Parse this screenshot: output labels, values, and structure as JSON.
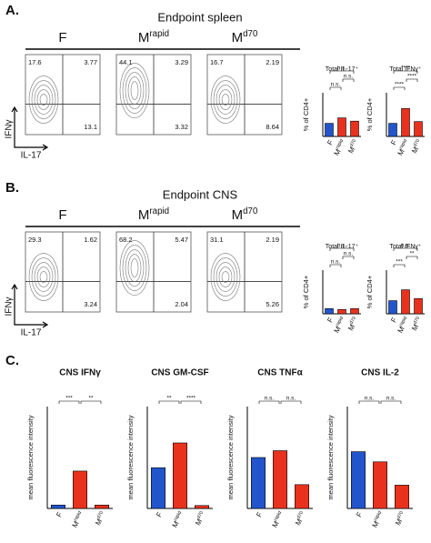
{
  "groups": [
    {
      "base": "F"
    },
    {
      "base": "M",
      "sup": "rapid"
    },
    {
      "base": "M",
      "sup": "d70"
    }
  ],
  "panels": [
    {
      "label": "A.",
      "title": "Endpoint spleen",
      "flow": {
        "y_axis": "IFNγ",
        "x_axis": "IL-17",
        "plots": [
          {
            "quadrants": {
              "upper_left": 17.6,
              "upper_right": 3.77,
              "lower_right": 13.1
            }
          },
          {
            "quadrants": {
              "upper_left": 44.1,
              "upper_right": 3.29,
              "lower_right": 3.32
            }
          },
          {
            "quadrants": {
              "upper_left": 16.7,
              "upper_right": 2.19,
              "lower_right": 8.64
            }
          }
        ]
      },
      "bars": [
        {
          "title": "Total IL-17⁺",
          "y_label": "% of CD4+",
          "ylim": [
            0,
            40
          ],
          "values": [
            12,
            17,
            14
          ],
          "colors": [
            "#2255cc",
            "#e8321e",
            "#e8321e"
          ],
          "significance": [
            "n.s.",
            "n.s.",
            "n.s."
          ]
        },
        {
          "title": "Total IFNγ⁺",
          "y_label": "% of CD4+",
          "ylim": [
            0,
            50
          ],
          "values": [
            15,
            32,
            17
          ],
          "colors": [
            "#2255cc",
            "#e8321e",
            "#e8321e"
          ],
          "significance": [
            "****",
            "****",
            "****"
          ]
        }
      ]
    },
    {
      "label": "B.",
      "title": "Endpoint CNS",
      "flow": {
        "y_axis": "IFNγ",
        "x_axis": "IL-17",
        "plots": [
          {
            "quadrants": {
              "upper_left": 29.3,
              "upper_right": 1.62,
              "lower_right": 3.24
            }
          },
          {
            "quadrants": {
              "upper_left": 68.2,
              "upper_right": 5.47,
              "lower_right": 2.04
            }
          },
          {
            "quadrants": {
              "upper_left": 31.1,
              "upper_right": 2.19,
              "lower_right": 5.26
            }
          }
        ]
      },
      "bars": [
        {
          "title": "Total IL-17⁺",
          "y_label": "% of CD4+",
          "ylim": [
            0,
            50
          ],
          "values": [
            6,
            5,
            6
          ],
          "colors": [
            "#2255cc",
            "#e8321e",
            "#e8321e"
          ],
          "significance": [
            "n.s.",
            "n.s.",
            "n.s."
          ]
        },
        {
          "title": "Total IFNγ⁺",
          "y_label": "% of CD4+",
          "ylim": [
            0,
            100
          ],
          "values": [
            30,
            55,
            35
          ],
          "colors": [
            "#2255cc",
            "#e8321e",
            "#e8321e"
          ],
          "significance": [
            "***",
            "n.s.",
            "**"
          ]
        }
      ]
    },
    {
      "label": "C.",
      "bars": [
        {
          "title": "CNS IFNγ",
          "y_label": "mean fluorescence intensity",
          "ylim": [
            0,
            30
          ],
          "values": [
            1,
            11,
            1
          ],
          "colors": [
            "#2255cc",
            "#e8321e",
            "#e8321e"
          ],
          "significance": [
            "***",
            "**"
          ]
        },
        {
          "title": "CNS GM-CSF",
          "y_label": "mean fluorescence intensity",
          "ylim": [
            0,
            70
          ],
          "values": [
            28,
            45,
            2
          ],
          "colors": [
            "#2255cc",
            "#e8321e",
            "#e8321e"
          ],
          "significance": [
            "**",
            "****"
          ]
        },
        {
          "title": "CNS TNFα",
          "y_label": "mean fluorescence intensity",
          "ylim": [
            0,
            60
          ],
          "values": [
            30,
            34,
            14
          ],
          "colors": [
            "#2255cc",
            "#e8321e",
            "#e8321e"
          ],
          "significance": [
            "n.s.",
            "n.s."
          ]
        },
        {
          "title": "CNS IL-2",
          "y_label": "mean fluorescence intensity",
          "ylim": [
            0,
            140
          ],
          "values": [
            78,
            64,
            32
          ],
          "colors": [
            "#2255cc",
            "#e8321e",
            "#e8321e"
          ],
          "significance": [
            "n.s.",
            "n.s."
          ]
        }
      ]
    }
  ]
}
